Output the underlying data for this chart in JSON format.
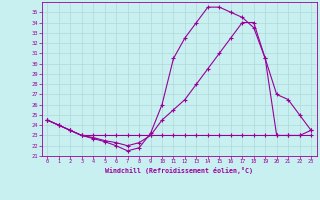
{
  "xlabel": "Windchill (Refroidissement éolien,°C)",
  "background_color": "#c8f0f0",
  "line_color": "#990099",
  "xlim": [
    -0.5,
    23.5
  ],
  "ylim": [
    21,
    36
  ],
  "xticks": [
    0,
    1,
    2,
    3,
    4,
    5,
    6,
    7,
    8,
    9,
    10,
    11,
    12,
    13,
    14,
    15,
    16,
    17,
    18,
    19,
    20,
    21,
    22,
    23
  ],
  "yticks": [
    21,
    22,
    23,
    24,
    25,
    26,
    27,
    28,
    29,
    30,
    31,
    32,
    33,
    34,
    35
  ],
  "series1_x": [
    0,
    1,
    2,
    3,
    4,
    5,
    6,
    7,
    8,
    9,
    10,
    11,
    12,
    13,
    14,
    15,
    16,
    17,
    18,
    19,
    20,
    21,
    22,
    23
  ],
  "series1_y": [
    24.5,
    24.0,
    23.5,
    23.0,
    22.7,
    22.4,
    22.0,
    21.5,
    21.8,
    23.2,
    26.0,
    30.5,
    32.5,
    34.0,
    35.5,
    35.5,
    35.0,
    34.5,
    33.5,
    30.5,
    23.0,
    23.0,
    23.0,
    23.5
  ],
  "series2_x": [
    0,
    1,
    2,
    3,
    4,
    5,
    6,
    7,
    8,
    9,
    10,
    11,
    12,
    13,
    14,
    15,
    16,
    17,
    18,
    19,
    20,
    21,
    22,
    23
  ],
  "series2_y": [
    24.5,
    24.0,
    23.5,
    23.0,
    22.8,
    22.5,
    22.3,
    22.0,
    22.3,
    23.0,
    24.5,
    25.5,
    26.5,
    28.0,
    29.5,
    31.0,
    32.5,
    34.0,
    34.0,
    30.5,
    27.0,
    26.5,
    25.0,
    23.5
  ],
  "series3_x": [
    0,
    1,
    2,
    3,
    4,
    5,
    6,
    7,
    8,
    9,
    10,
    11,
    12,
    13,
    14,
    15,
    16,
    17,
    18,
    19,
    20,
    21,
    22,
    23
  ],
  "series3_y": [
    24.5,
    24.0,
    23.5,
    23.0,
    23.0,
    23.0,
    23.0,
    23.0,
    23.0,
    23.0,
    23.0,
    23.0,
    23.0,
    23.0,
    23.0,
    23.0,
    23.0,
    23.0,
    23.0,
    23.0,
    23.0,
    23.0,
    23.0,
    23.0
  ]
}
